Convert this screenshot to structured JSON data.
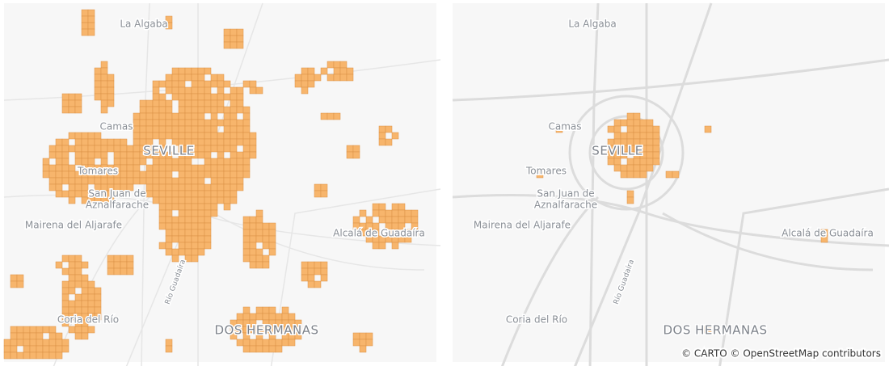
{
  "panels": [
    {
      "labels": [
        "La Algaba",
        "Camas",
        "SEVILLE",
        "Tomares",
        "San Juan de",
        "Aznalfarache",
        "Mairena del Aljarafe",
        "Alcalá de Guadaíra",
        "Coria del Río",
        "DOS HERMANAS",
        "Río Guadaíra"
      ]
    },
    {
      "labels": [
        "La Algaba",
        "Camas",
        "SEVILLE",
        "Tomares",
        "San Juan de",
        "Aznalfarache",
        "Mairena del Aljarafe",
        "Alcalá de Guadaíra",
        "Coria del Río",
        "DOS HERMANAS",
        "Río Guadaíra"
      ]
    }
  ],
  "attribution": "© CARTO © OpenStreetMap contributors"
}
